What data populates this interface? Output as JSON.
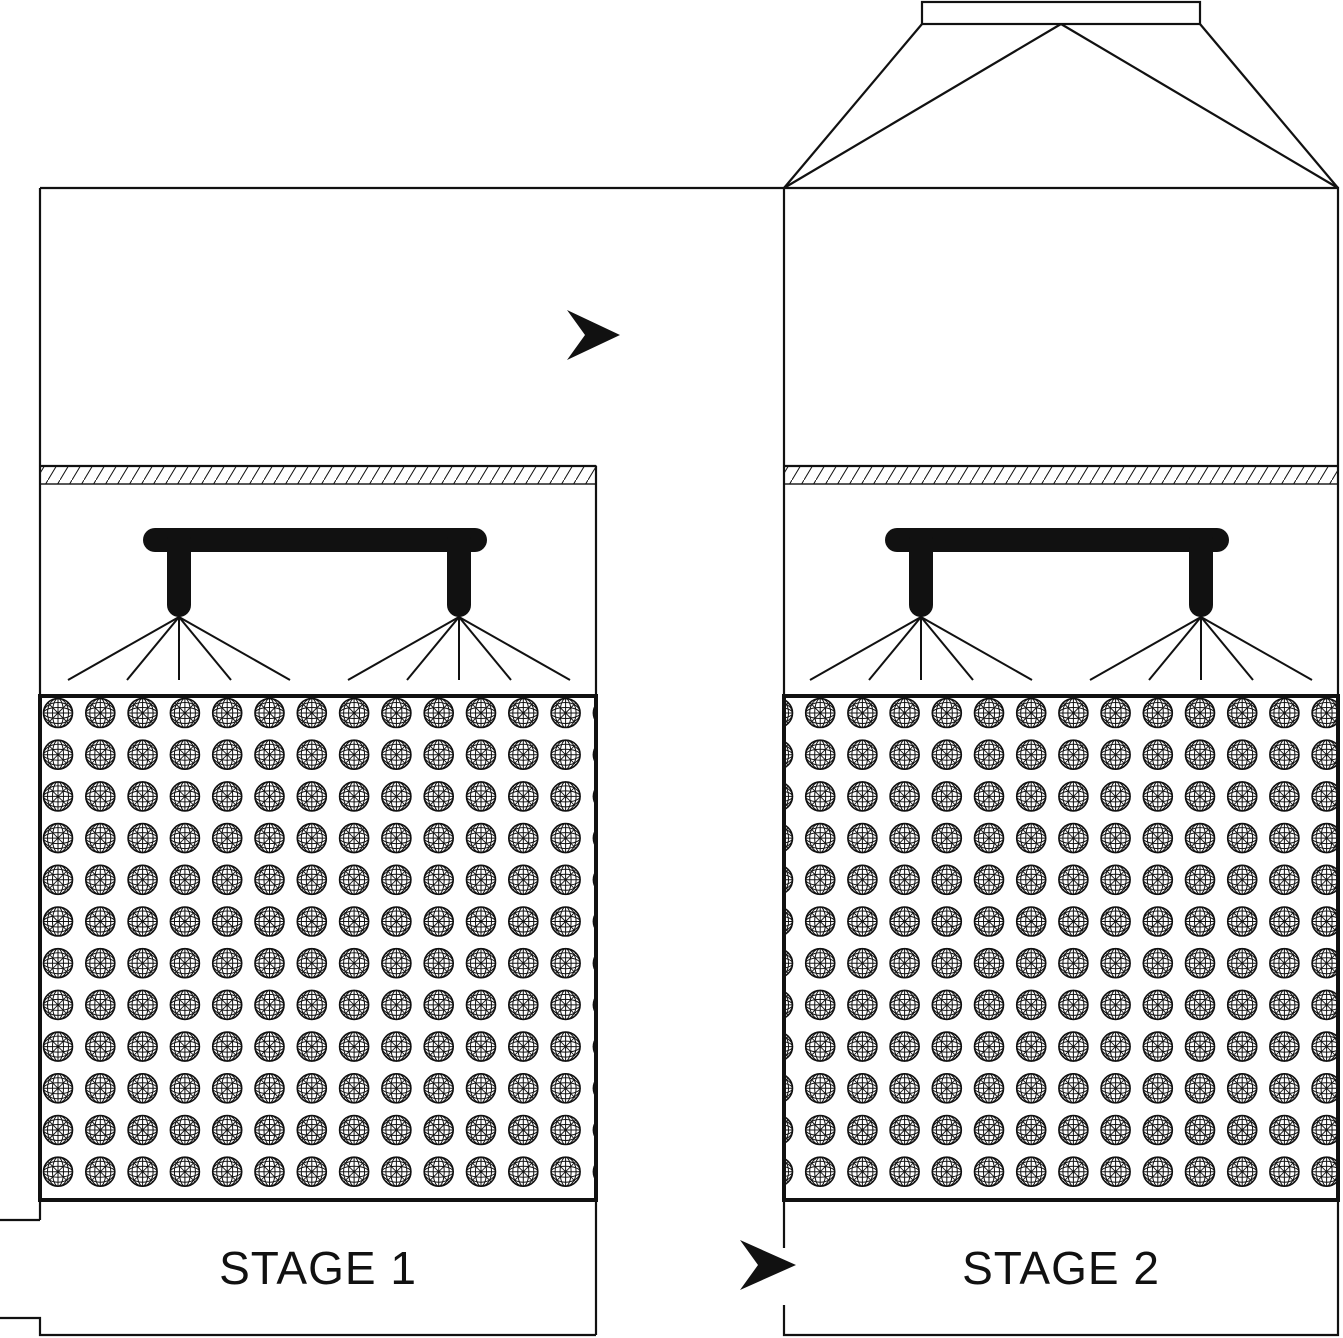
{
  "diagram": {
    "type": "two-stage packed-bed scrubber",
    "stages": [
      {
        "label": "STAGE 1"
      },
      {
        "label": "STAGE 2"
      }
    ],
    "flow_direction_markers": 2,
    "colors": {
      "line": "#111111",
      "background": "#ffffff"
    },
    "icons": [
      "flow-arrow-icon",
      "spray-nozzle-icon",
      "packing-ball-icon",
      "mist-eliminator-icon",
      "exhaust-hood-icon"
    ]
  }
}
